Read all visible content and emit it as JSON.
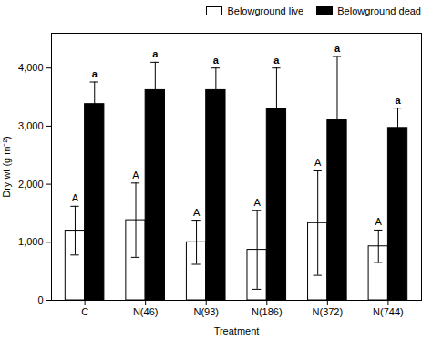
{
  "chart_data": {
    "type": "bar",
    "categories": [
      "C",
      "N(46)",
      "N(93)",
      "N(186)",
      "N(372)",
      "N(744)"
    ],
    "series": [
      {
        "name": "Belowground live",
        "color": "white",
        "annotation": "A",
        "values": [
          1200,
          1380,
          1000,
          870,
          1330,
          930
        ],
        "errors": [
          420,
          640,
          380,
          680,
          900,
          280
        ]
      },
      {
        "name": "Belowground dead",
        "color": "black",
        "annotation": "a",
        "values": [
          3380,
          3620,
          3620,
          3300,
          3100,
          2970
        ],
        "errors": [
          380,
          480,
          380,
          700,
          1100,
          340
        ]
      }
    ],
    "xlabel": "Treatment",
    "ylabel": "Dry wt (g m⁻²)",
    "ylim": [
      0,
      4600
    ],
    "yticks": [
      0,
      {
        "value": 1000,
        "label": "1,000"
      },
      {
        "value": 2000,
        "label": "2,000"
      },
      {
        "value": 3000,
        "label": "3,000"
      },
      {
        "value": 4000,
        "label": "4,000"
      }
    ],
    "legend": "upper right"
  }
}
